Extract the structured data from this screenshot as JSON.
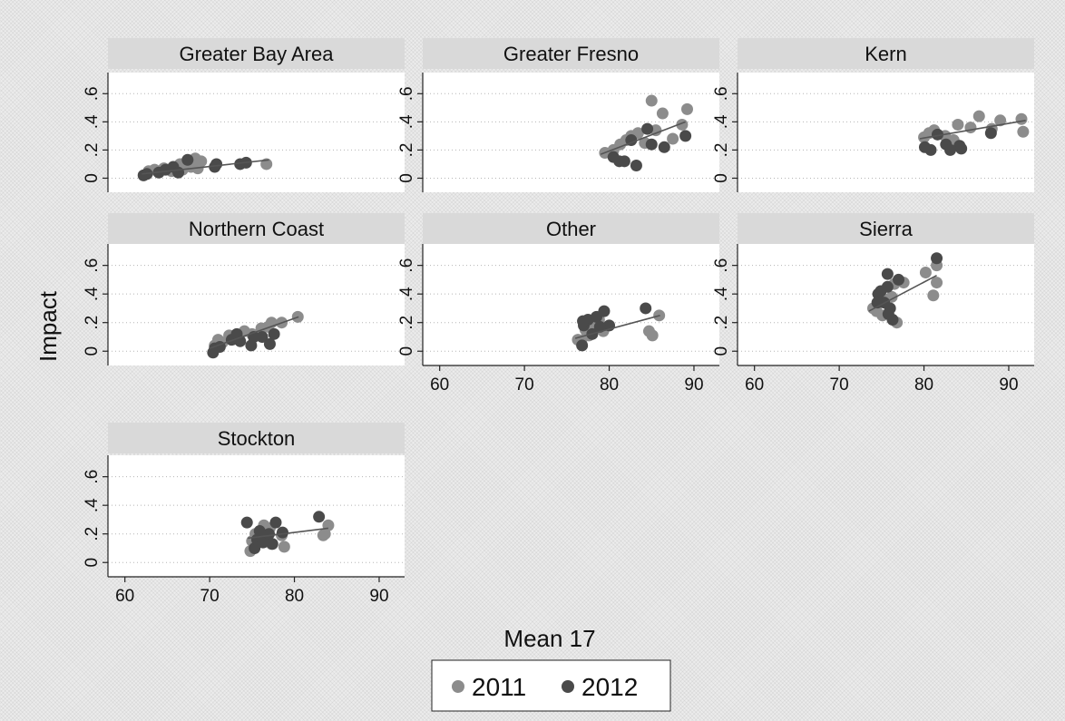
{
  "chart_data": {
    "type": "scatter",
    "subtype": "small-multiples scatter with linear fit",
    "ylabel": "Impact",
    "xlabel": "Mean 17",
    "xlim": [
      58,
      93
    ],
    "ylim": [
      -0.1,
      0.75
    ],
    "x_ticks": [
      "60",
      "70",
      "80",
      "90"
    ],
    "y_ticks": [
      "0",
      ".2",
      ".4",
      ".6"
    ],
    "x_tick_values": [
      60,
      70,
      80,
      90
    ],
    "y_tick_values": [
      0,
      0.2,
      0.4,
      0.6
    ],
    "grid": true,
    "legend_position": "bottom",
    "legend": [
      {
        "label": "2011",
        "color": "#8c8c8c"
      },
      {
        "label": "2012",
        "color": "#4a4a4a"
      }
    ],
    "fit_line_color": "#555555",
    "panels": [
      {
        "title": "Greater Bay Area",
        "fit": [
          [
            62,
            0.03
          ],
          [
            77,
            0.13
          ]
        ],
        "series": [
          {
            "name": "2011",
            "points": [
              [
                62.8,
                0.05
              ],
              [
                63.5,
                0.06
              ],
              [
                64.6,
                0.07
              ],
              [
                65.5,
                0.05
              ],
              [
                66.5,
                0.1
              ],
              [
                67.3,
                0.12
              ],
              [
                68.3,
                0.14
              ],
              [
                69.0,
                0.12
              ],
              [
                67.8,
                0.08
              ],
              [
                66.8,
                0.06
              ],
              [
                68.6,
                0.07
              ],
              [
                76.7,
                0.1
              ]
            ]
          },
          {
            "name": "2012",
            "points": [
              [
                62.2,
                0.02
              ],
              [
                62.6,
                0.03
              ],
              [
                64.0,
                0.04
              ],
              [
                64.8,
                0.06
              ],
              [
                65.7,
                0.08
              ],
              [
                66.3,
                0.04
              ],
              [
                67.4,
                0.13
              ],
              [
                70.6,
                0.08
              ],
              [
                70.8,
                0.1
              ],
              [
                73.6,
                0.1
              ],
              [
                74.3,
                0.11
              ]
            ]
          }
        ]
      },
      {
        "title": "Greater Fresno",
        "fit": [
          [
            79,
            0.17
          ],
          [
            89,
            0.4
          ]
        ],
        "series": [
          {
            "name": "2011",
            "points": [
              [
                79.5,
                0.18
              ],
              [
                80.5,
                0.2
              ],
              [
                81.3,
                0.24
              ],
              [
                82.0,
                0.27
              ],
              [
                82.6,
                0.3
              ],
              [
                83.4,
                0.32
              ],
              [
                84.2,
                0.25
              ],
              [
                85.0,
                0.55
              ],
              [
                85.5,
                0.34
              ],
              [
                86.3,
                0.46
              ],
              [
                87.5,
                0.28
              ],
              [
                88.6,
                0.38
              ],
              [
                89.2,
                0.49
              ]
            ]
          },
          {
            "name": "2012",
            "points": [
              [
                80.5,
                0.15
              ],
              [
                81.2,
                0.12
              ],
              [
                81.8,
                0.12
              ],
              [
                82.6,
                0.27
              ],
              [
                83.2,
                0.09
              ],
              [
                84.5,
                0.35
              ],
              [
                85.0,
                0.24
              ],
              [
                86.5,
                0.22
              ],
              [
                89.0,
                0.3
              ]
            ]
          }
        ]
      },
      {
        "title": "Kern",
        "fit": [
          [
            79.5,
            0.28
          ],
          [
            92,
            0.41
          ]
        ],
        "series": [
          {
            "name": "2011",
            "points": [
              [
                80.0,
                0.29
              ],
              [
                80.6,
                0.32
              ],
              [
                81.2,
                0.34
              ],
              [
                82.5,
                0.3
              ],
              [
                84.0,
                0.38
              ],
              [
                85.5,
                0.36
              ],
              [
                86.5,
                0.44
              ],
              [
                88.0,
                0.35
              ],
              [
                89.0,
                0.41
              ],
              [
                91.5,
                0.42
              ],
              [
                91.7,
                0.33
              ],
              [
                83.5,
                0.27
              ]
            ]
          },
          {
            "name": "2012",
            "points": [
              [
                80.1,
                0.22
              ],
              [
                80.8,
                0.2
              ],
              [
                81.6,
                0.31
              ],
              [
                82.6,
                0.24
              ],
              [
                83.1,
                0.2
              ],
              [
                84.2,
                0.23
              ],
              [
                84.4,
                0.21
              ],
              [
                87.9,
                0.32
              ]
            ]
          }
        ]
      },
      {
        "title": "Northern Coast",
        "fit": [
          [
            70,
            0.02
          ],
          [
            80.5,
            0.24
          ]
        ],
        "series": [
          {
            "name": "2011",
            "points": [
              [
                70.6,
                0.04
              ],
              [
                71.0,
                0.08
              ],
              [
                71.5,
                0.06
              ],
              [
                72.3,
                0.11
              ],
              [
                73.0,
                0.09
              ],
              [
                74.1,
                0.14
              ],
              [
                75.0,
                0.12
              ],
              [
                76.1,
                0.16
              ],
              [
                77.3,
                0.2
              ],
              [
                78.5,
                0.2
              ],
              [
                80.4,
                0.24
              ],
              [
                76.9,
                0.17
              ]
            ]
          },
          {
            "name": "2012",
            "points": [
              [
                70.4,
                -0.01
              ],
              [
                70.6,
                0.02
              ],
              [
                71.2,
                0.03
              ],
              [
                72.6,
                0.08
              ],
              [
                73.6,
                0.07
              ],
              [
                74.9,
                0.04
              ],
              [
                75.2,
                0.1
              ],
              [
                76.2,
                0.1
              ],
              [
                77.1,
                0.05
              ],
              [
                77.6,
                0.12
              ],
              [
                73.2,
                0.12
              ]
            ]
          }
        ]
      },
      {
        "title": "Other",
        "fit": [
          [
            76,
            0.09
          ],
          [
            86,
            0.25
          ]
        ],
        "series": [
          {
            "name": "2011",
            "points": [
              [
                76.3,
                0.08
              ],
              [
                76.7,
                0.06
              ],
              [
                77.2,
                0.15
              ],
              [
                77.6,
                0.11
              ],
              [
                78.3,
                0.18
              ],
              [
                79.3,
                0.14
              ],
              [
                84.7,
                0.14
              ],
              [
                85.1,
                0.11
              ],
              [
                85.9,
                0.25
              ],
              [
                78.8,
                0.22
              ],
              [
                77.4,
                0.12
              ]
            ]
          },
          {
            "name": "2012",
            "points": [
              [
                76.8,
                0.04
              ],
              [
                77.0,
                0.18
              ],
              [
                77.5,
                0.22
              ],
              [
                78.0,
                0.12
              ],
              [
                78.5,
                0.24
              ],
              [
                79.4,
                0.28
              ],
              [
                80.0,
                0.18
              ],
              [
                84.3,
                0.3
              ],
              [
                76.9,
                0.21
              ],
              [
                78.9,
                0.17
              ]
            ]
          }
        ]
      },
      {
        "title": "Sierra",
        "fit": [
          [
            73.5,
            0.28
          ],
          [
            81.5,
            0.53
          ]
        ],
        "series": [
          {
            "name": "2011",
            "points": [
              [
                74.0,
                0.3
              ],
              [
                74.4,
                0.28
              ],
              [
                75.1,
                0.25
              ],
              [
                75.4,
                0.36
              ],
              [
                76.2,
                0.38
              ],
              [
                76.8,
                0.2
              ],
              [
                77.6,
                0.48
              ],
              [
                80.2,
                0.55
              ],
              [
                81.1,
                0.39
              ],
              [
                81.5,
                0.48
              ],
              [
                81.5,
                0.6
              ],
              [
                76.5,
                0.47
              ]
            ]
          },
          {
            "name": "2012",
            "points": [
              [
                74.6,
                0.4
              ],
              [
                74.9,
                0.42
              ],
              [
                75.3,
                0.34
              ],
              [
                75.7,
                0.45
              ],
              [
                75.7,
                0.54
              ],
              [
                76.0,
                0.3
              ],
              [
                76.3,
                0.22
              ],
              [
                77.0,
                0.5
              ],
              [
                81.5,
                0.65
              ],
              [
                75.8,
                0.26
              ],
              [
                74.5,
                0.34
              ]
            ]
          }
        ]
      },
      {
        "title": "Stockton",
        "fit": [
          [
            74.5,
            0.17
          ],
          [
            84,
            0.24
          ]
        ],
        "series": [
          {
            "name": "2011",
            "points": [
              [
                74.8,
                0.08
              ],
              [
                75.0,
                0.15
              ],
              [
                75.4,
                0.2
              ],
              [
                76.4,
                0.26
              ],
              [
                77.1,
                0.24
              ],
              [
                78.5,
                0.19
              ],
              [
                78.8,
                0.11
              ],
              [
                83.4,
                0.19
              ],
              [
                83.6,
                0.2
              ],
              [
                84.0,
                0.26
              ],
              [
                77.3,
                0.13
              ]
            ]
          },
          {
            "name": "2012",
            "points": [
              [
                74.4,
                0.28
              ],
              [
                75.3,
                0.1
              ],
              [
                75.6,
                0.16
              ],
              [
                76.3,
                0.14
              ],
              [
                77.0,
                0.2
              ],
              [
                77.4,
                0.13
              ],
              [
                77.8,
                0.28
              ],
              [
                78.6,
                0.21
              ],
              [
                82.9,
                0.32
              ],
              [
                75.9,
                0.22
              ]
            ]
          }
        ]
      }
    ]
  }
}
